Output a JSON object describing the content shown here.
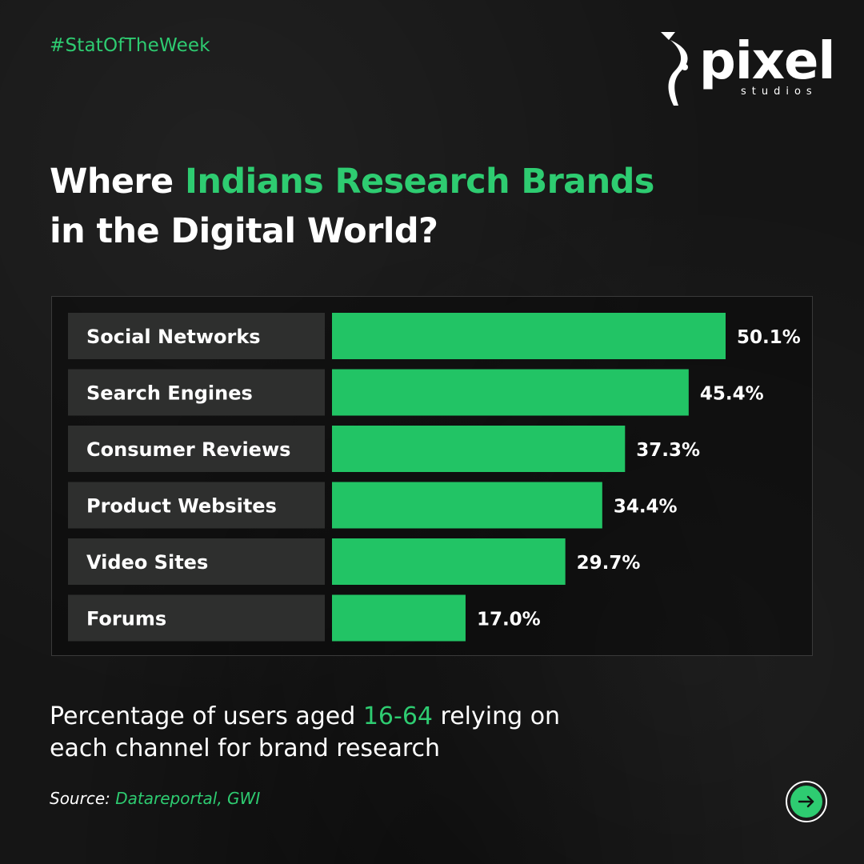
{
  "header": {
    "hashtag": "#StatOfTheWeek",
    "logo_word": "pixel",
    "logo_sub": "studios"
  },
  "title": {
    "line1_plain": "Where ",
    "line1_accent": "Indians Research Brands",
    "line2": "in the Digital World?"
  },
  "subtitle": {
    "part1": "Percentage of users aged ",
    "accent": "16-64",
    "part2": " relying on",
    "line2": "each channel for brand research"
  },
  "source": {
    "label": "Source: ",
    "value": "Datareportal, GWI"
  },
  "colors": {
    "accent": "#2ecc71",
    "bar": "#22c465",
    "label_box": "#2e2f2e",
    "background": "#151515"
  },
  "icons": {
    "next": "arrow-right-icon"
  },
  "chart_data": {
    "type": "bar",
    "orientation": "horizontal",
    "categories": [
      "Social Networks",
      "Search Engines",
      "Consumer Reviews",
      "Product Websites",
      "Video Sites",
      "Forums"
    ],
    "values": [
      50.1,
      45.4,
      37.3,
      34.4,
      29.7,
      17.0
    ],
    "value_labels": [
      "50.1%",
      "45.4%",
      "37.3%",
      "34.4%",
      "29.7%",
      "17.0%"
    ],
    "unit": "%",
    "xlim": [
      0,
      50.1
    ],
    "grid": false,
    "legend": "none"
  }
}
